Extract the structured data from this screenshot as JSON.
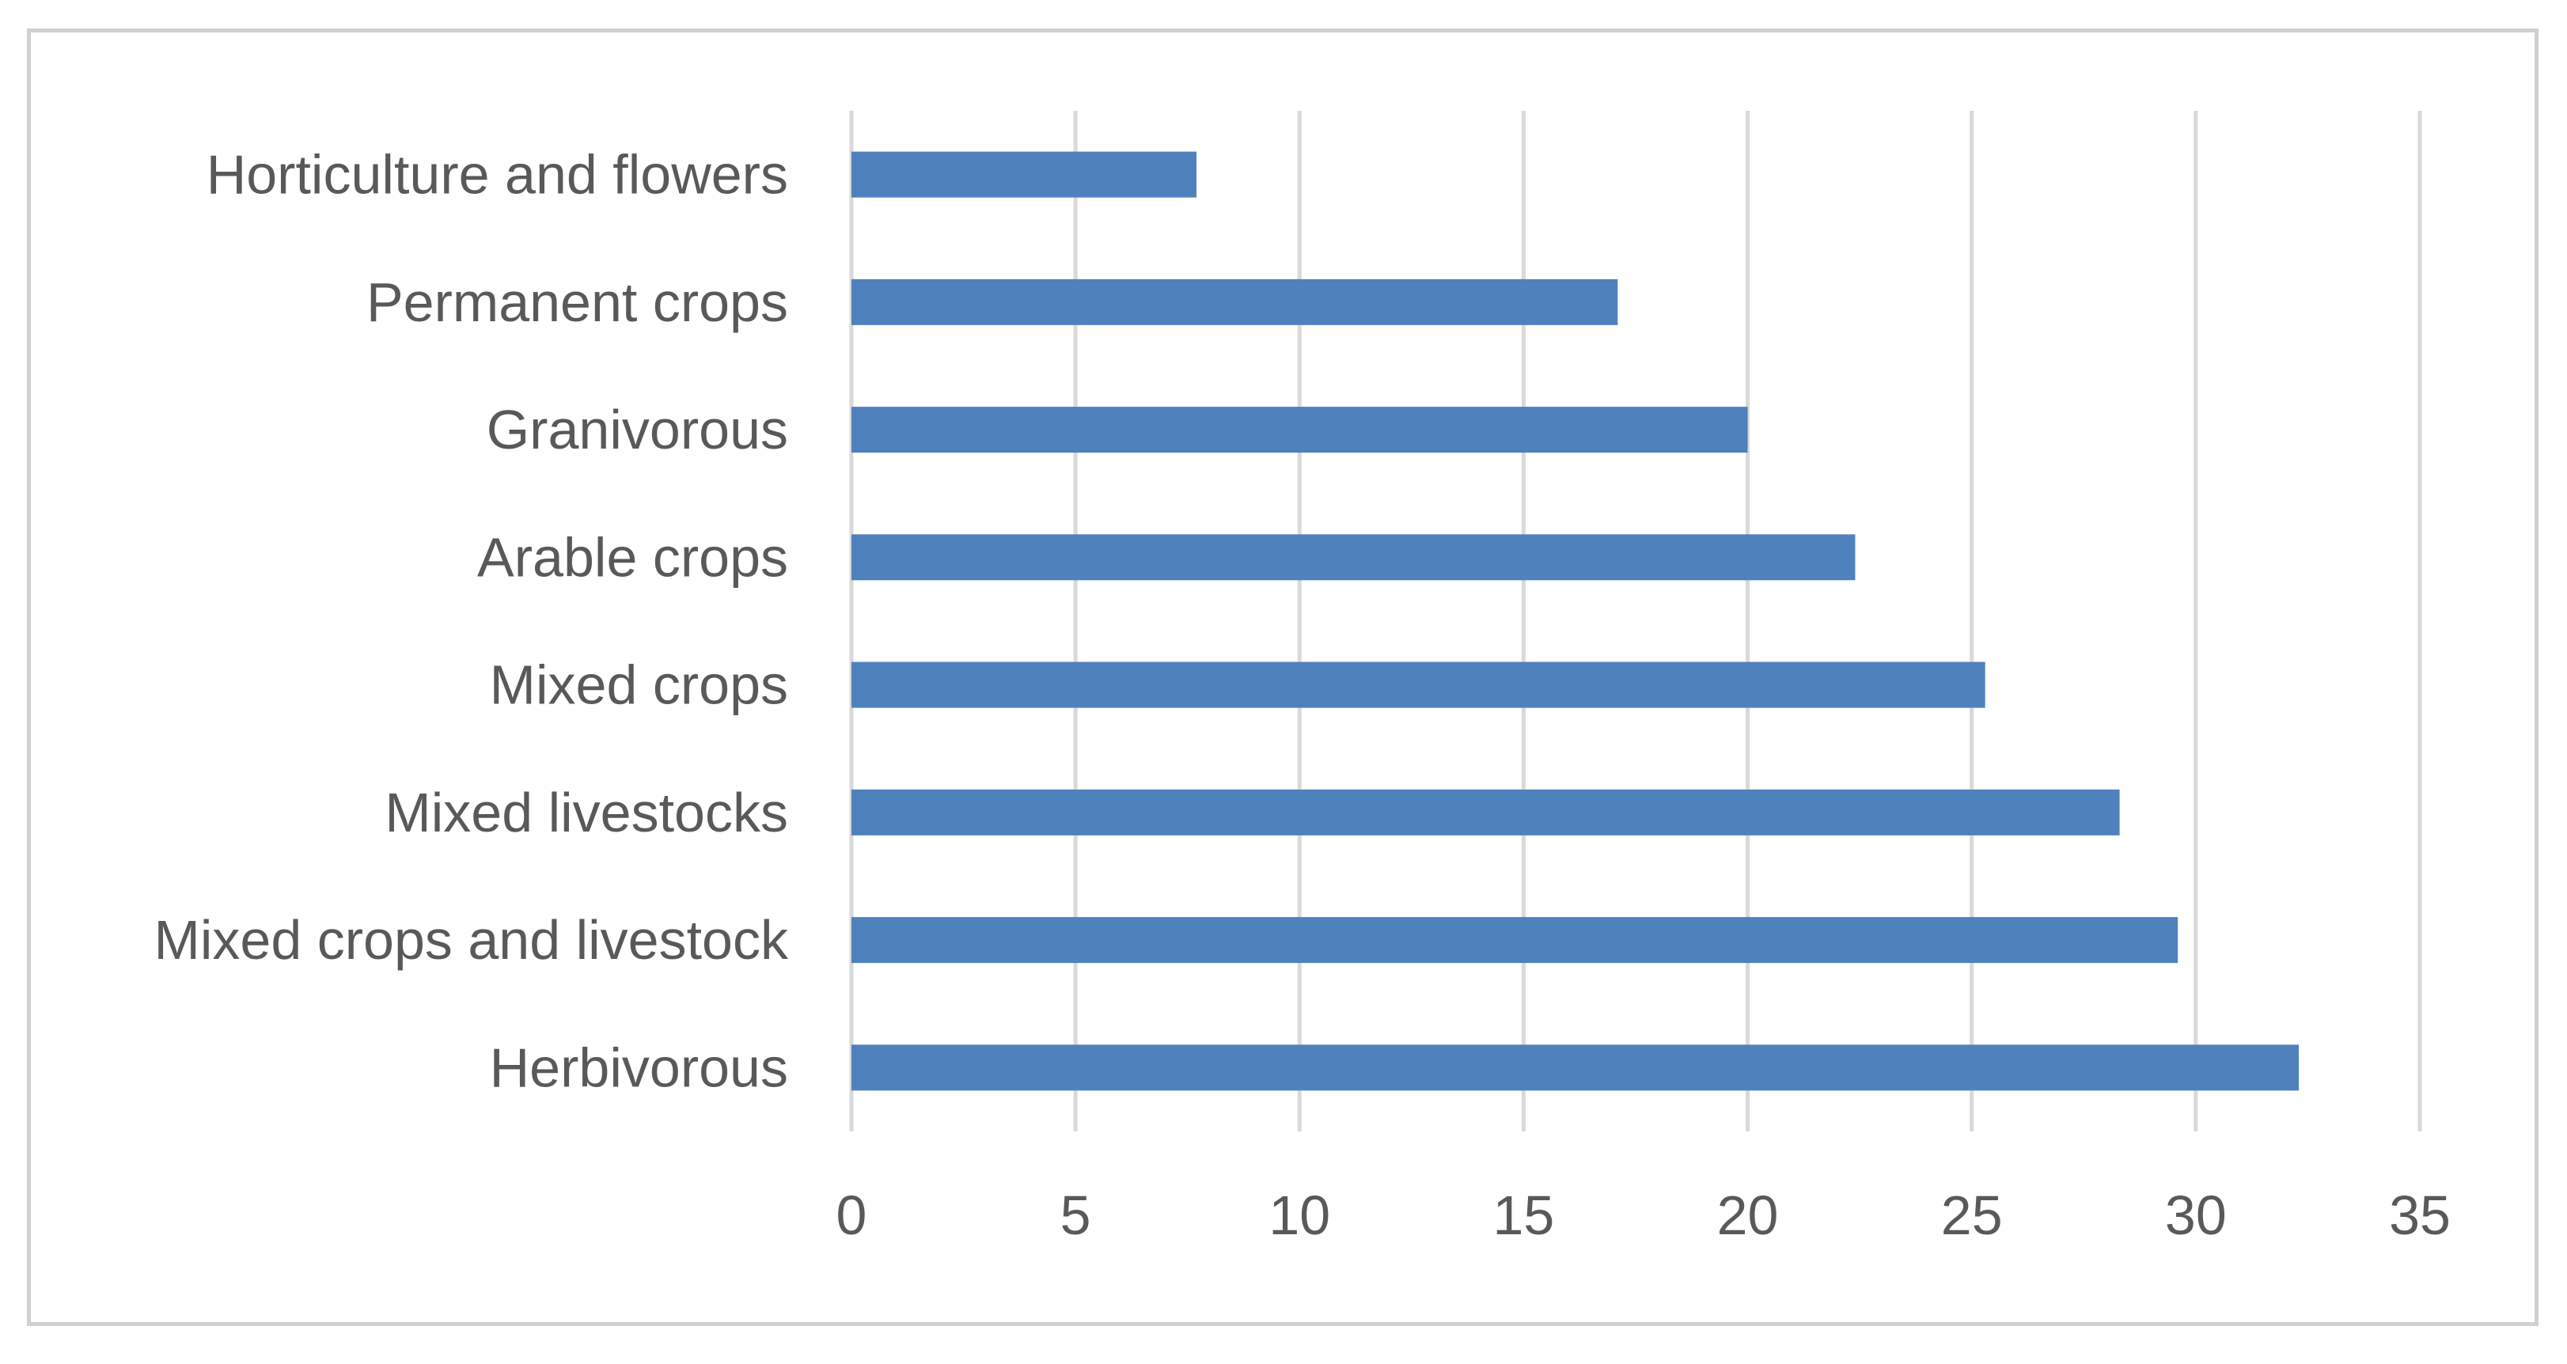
{
  "chart_data": {
    "type": "bar",
    "orientation": "horizontal",
    "title": "",
    "xlabel": "",
    "ylabel": "",
    "categories": [
      "Horticulture and flowers",
      "Permanent crops",
      "Granivorous",
      "Arable crops",
      "Mixed crops",
      "Mixed livestocks",
      "Mixed crops and livestock",
      "Herbivorous"
    ],
    "values": [
      7.7,
      17.1,
      20.0,
      22.4,
      25.3,
      28.3,
      29.6,
      32.3
    ],
    "xlim": [
      0,
      35
    ],
    "xticks": [
      "0",
      "5",
      "10",
      "15",
      "20",
      "25",
      "30",
      "35"
    ],
    "grid": "vertical",
    "legend": "none",
    "bar_color": "#4f81bd"
  }
}
